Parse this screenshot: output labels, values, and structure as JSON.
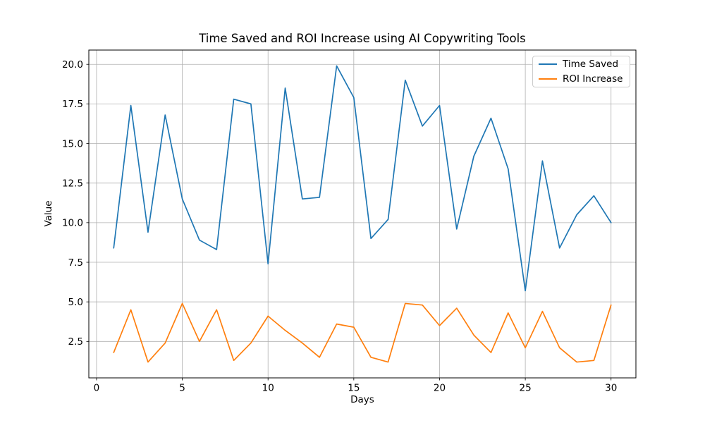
{
  "figure": {
    "background": "#ffffff"
  },
  "chart_data": {
    "type": "line",
    "title": "Time Saved and ROI Increase using AI Copywriting Tools",
    "xlabel": "Days",
    "ylabel": "Value",
    "x": [
      1,
      2,
      3,
      4,
      5,
      6,
      7,
      8,
      9,
      10,
      11,
      12,
      13,
      14,
      15,
      16,
      17,
      18,
      19,
      20,
      21,
      22,
      23,
      24,
      25,
      26,
      27,
      28,
      29,
      30
    ],
    "series": [
      {
        "name": "Time Saved",
        "color": "#1f77b4",
        "values": [
          8.4,
          17.4,
          9.4,
          16.8,
          11.5,
          8.9,
          8.3,
          17.8,
          17.5,
          7.4,
          18.5,
          11.5,
          11.6,
          19.9,
          17.9,
          9.0,
          10.2,
          19.0,
          16.1,
          17.4,
          9.6,
          14.2,
          16.6,
          13.4,
          5.7,
          13.9,
          8.4,
          10.5,
          11.7,
          10.0
        ]
      },
      {
        "name": "ROI Increase",
        "color": "#ff7f0e",
        "values": [
          1.8,
          4.5,
          1.2,
          2.4,
          4.9,
          2.5,
          4.5,
          1.3,
          2.4,
          4.1,
          3.2,
          2.4,
          1.5,
          3.6,
          3.4,
          1.5,
          1.2,
          4.9,
          4.8,
          3.5,
          4.6,
          2.9,
          1.8,
          4.3,
          2.1,
          4.4,
          2.1,
          1.2,
          1.3,
          4.8
        ]
      }
    ],
    "legend": {
      "position": "upper right",
      "entries": [
        "Time Saved",
        "ROI Increase"
      ]
    },
    "xlim": [
      -0.45,
      31.45
    ],
    "ylim": [
      0.2,
      20.9
    ],
    "xticks": {
      "values": [
        0,
        5,
        10,
        15,
        20,
        25,
        30
      ],
      "labels": [
        "0",
        "5",
        "10",
        "15",
        "20",
        "25",
        "30"
      ]
    },
    "yticks": {
      "values": [
        2.5,
        5,
        7.5,
        10,
        12.5,
        15,
        17.5,
        20
      ],
      "labels": [
        "2.5",
        "5.0",
        "7.5",
        "10.0",
        "12.5",
        "15.0",
        "17.5",
        "20.0"
      ]
    },
    "grid": true,
    "colors": {
      "grid": "#b0b0b0",
      "frame": "#000000",
      "text": "#000000",
      "background": "#ffffff"
    }
  }
}
